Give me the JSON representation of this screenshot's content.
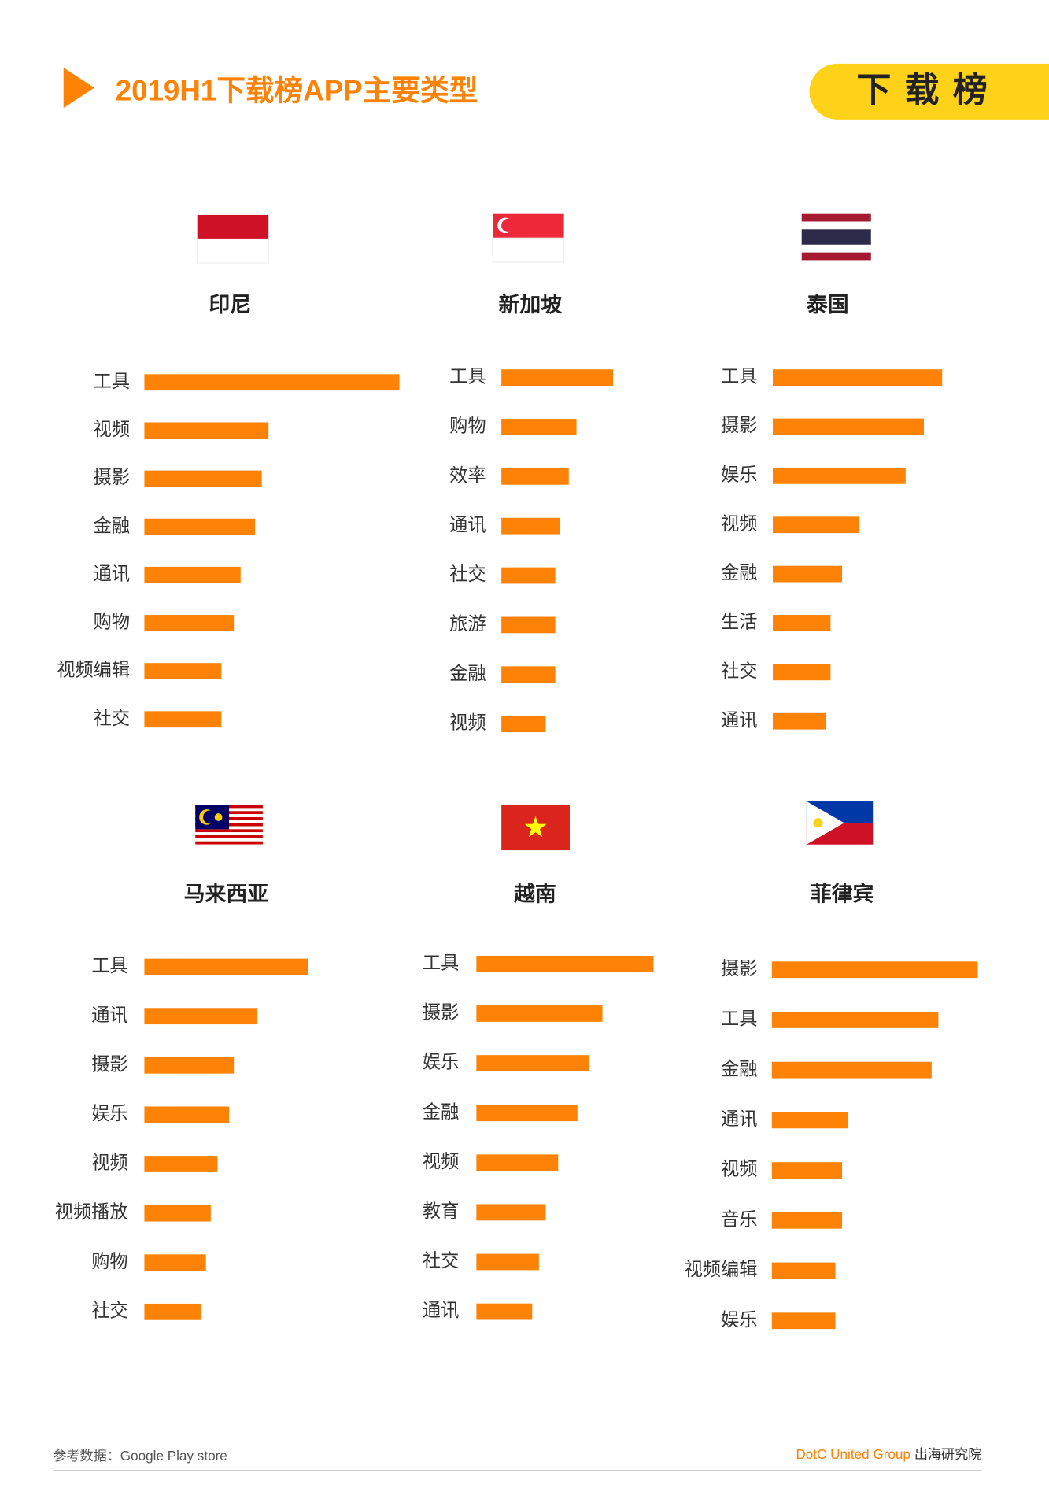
{
  "header": {
    "title": "2019H1下载榜APP主要类型",
    "badge": "下载榜"
  },
  "chart_data": [
    {
      "type": "bar",
      "orientation": "horizontal",
      "title": "印尼",
      "color": "#fe8205",
      "categories": [
        "工具",
        "视频",
        "摄影",
        "金融",
        "通讯",
        "购物",
        "视频编辑",
        "社交"
      ],
      "values": [
        265,
        129,
        122,
        115,
        100,
        93,
        80,
        80
      ]
    },
    {
      "type": "bar",
      "orientation": "horizontal",
      "title": "新加坡",
      "color": "#fe8205",
      "categories": [
        "工具",
        "购物",
        "效率",
        "通讯",
        "社交",
        "旅游",
        "金融",
        "视频"
      ],
      "values": [
        116,
        78,
        70,
        61,
        56,
        56,
        56,
        46
      ]
    },
    {
      "type": "bar",
      "orientation": "horizontal",
      "title": "泰国",
      "color": "#fe8205",
      "categories": [
        "工具",
        "摄影",
        "娱乐",
        "视频",
        "金融",
        "生活",
        "社交",
        "通讯"
      ],
      "values": [
        176,
        157,
        138,
        90,
        72,
        60,
        60,
        55
      ]
    },
    {
      "type": "bar",
      "orientation": "horizontal",
      "title": "马来西亚",
      "color": "#fe8205",
      "categories": [
        "工具",
        "通讯",
        "摄影",
        "娱乐",
        "视频",
        "视频播放",
        "购物",
        "社交"
      ],
      "values": [
        170,
        117,
        93,
        88,
        76,
        69,
        64,
        59
      ]
    },
    {
      "type": "bar",
      "orientation": "horizontal",
      "title": "越南",
      "color": "#fe8205",
      "categories": [
        "工具",
        "摄影",
        "娱乐",
        "金融",
        "视频",
        "教育",
        "社交",
        "通讯"
      ],
      "values": [
        184,
        131,
        117,
        105,
        85,
        72,
        65,
        58
      ]
    },
    {
      "type": "bar",
      "orientation": "horizontal",
      "title": "菲律宾",
      "color": "#fe8205",
      "categories": [
        "摄影",
        "工具",
        "金融",
        "通讯",
        "视频",
        "音乐",
        "视频编辑",
        "娱乐"
      ],
      "values": [
        214,
        173,
        166,
        79,
        73,
        73,
        66,
        66
      ]
    }
  ],
  "footer": {
    "source": "参考数据：Google Play store",
    "brand": "DotC United Group",
    "brand_suffix": "出海研究院"
  }
}
